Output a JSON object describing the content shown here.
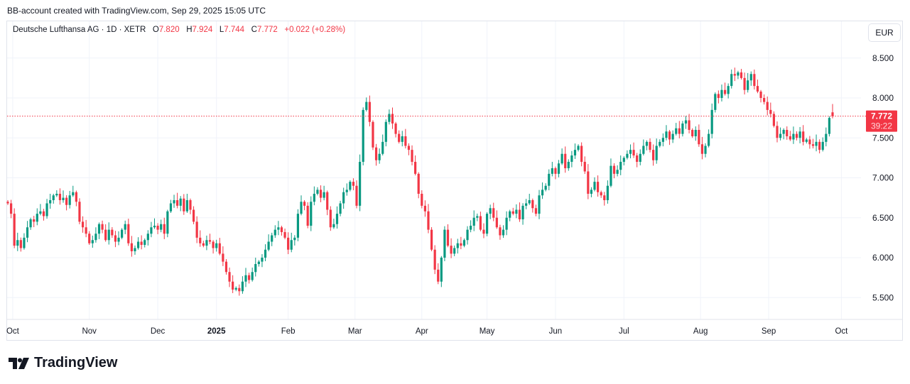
{
  "credit": "BB-account created with TradingView.com, Sep 29, 2025 15:05 UTC",
  "legend": {
    "symbol": "Deutsche Lufthansa AG · 1D · XETR",
    "o_label": "O",
    "o": "7.820",
    "h_label": "H",
    "h": "7.924",
    "l_label": "L",
    "l": "7.744",
    "c_label": "C",
    "c": "7.772",
    "change": "+0.022 (+0.28%)"
  },
  "currency": "EUR",
  "last_price": {
    "price": "7.772",
    "countdown": "39:22"
  },
  "brand": "TradingView",
  "colors": {
    "up": "#089981",
    "down": "#f23645",
    "grid": "#f0f3fa",
    "text": "#131722"
  },
  "chart_data": {
    "type": "candlestick",
    "title": "Deutsche Lufthansa AG · 1D · XETR",
    "ylim": [
      5.2,
      8.8
    ],
    "yticks": [
      "5.500",
      "6.000",
      "6.500",
      "7.000",
      "7.500",
      "8.000",
      "8.500"
    ],
    "xticks": [
      {
        "label": "Oct",
        "index": 1.5
      },
      {
        "label": "Nov",
        "index": 25
      },
      {
        "label": "Dec",
        "index": 46
      },
      {
        "label": "2025",
        "index": 64,
        "bold": true
      },
      {
        "label": "Feb",
        "index": 86
      },
      {
        "label": "Mar",
        "index": 106.5
      },
      {
        "label": "Apr",
        "index": 127
      },
      {
        "label": "May",
        "index": 147
      },
      {
        "label": "Jun",
        "index": 168
      },
      {
        "label": "Jul",
        "index": 189
      },
      {
        "label": "Aug",
        "index": 212.5
      },
      {
        "label": "Sep",
        "index": 233.4
      },
      {
        "label": "Oct",
        "index": 255.7
      }
    ],
    "first_open": 6.7,
    "last_open": 7.82,
    "last_high": 7.924,
    "last_low": 7.744,
    "close": [
      6.68,
      6.55,
      6.15,
      6.22,
      6.12,
      6.25,
      6.38,
      6.48,
      6.45,
      6.55,
      6.58,
      6.52,
      6.68,
      6.72,
      6.78,
      6.8,
      6.72,
      6.75,
      6.66,
      6.78,
      6.82,
      6.7,
      6.45,
      6.38,
      6.3,
      6.18,
      6.22,
      6.3,
      6.42,
      6.35,
      6.22,
      6.35,
      6.28,
      6.2,
      6.25,
      6.35,
      6.42,
      6.18,
      6.08,
      6.12,
      6.2,
      6.16,
      6.22,
      6.3,
      6.38,
      6.4,
      6.35,
      6.42,
      6.3,
      6.58,
      6.68,
      6.72,
      6.65,
      6.74,
      6.58,
      6.72,
      6.6,
      6.45,
      6.25,
      6.18,
      6.15,
      6.22,
      6.2,
      6.12,
      6.18,
      6.05,
      5.95,
      5.82,
      5.7,
      5.6,
      5.62,
      5.58,
      5.7,
      5.78,
      5.72,
      5.82,
      5.92,
      5.95,
      6.0,
      6.1,
      6.2,
      6.28,
      6.35,
      6.38,
      6.32,
      6.25,
      6.1,
      6.22,
      6.25,
      6.55,
      6.7,
      6.65,
      6.4,
      6.7,
      6.8,
      6.85,
      6.75,
      6.82,
      6.6,
      6.38,
      6.42,
      6.55,
      6.68,
      6.82,
      6.85,
      6.95,
      6.9,
      6.65,
      7.2,
      7.85,
      7.95,
      7.7,
      7.38,
      7.22,
      7.3,
      7.45,
      7.7,
      7.8,
      7.68,
      7.55,
      7.45,
      7.52,
      7.4,
      7.35,
      7.2,
      7.05,
      6.8,
      6.65,
      6.58,
      6.35,
      6.1,
      5.85,
      5.7,
      6.0,
      6.35,
      6.15,
      6.05,
      6.12,
      6.18,
      6.15,
      6.22,
      6.35,
      6.4,
      6.5,
      6.52,
      6.35,
      6.3,
      6.55,
      6.62,
      6.5,
      6.38,
      6.28,
      6.35,
      6.5,
      6.58,
      6.55,
      6.6,
      6.48,
      6.65,
      6.68,
      6.72,
      6.62,
      6.55,
      6.78,
      6.85,
      6.9,
      7.05,
      7.12,
      7.05,
      7.18,
      7.3,
      7.12,
      7.2,
      7.28,
      7.35,
      7.4,
      7.2,
      7.08,
      6.8,
      6.85,
      6.95,
      6.82,
      6.78,
      6.72,
      6.9,
      7.15,
      7.05,
      7.1,
      7.2,
      7.25,
      7.3,
      7.35,
      7.28,
      7.2,
      7.3,
      7.4,
      7.45,
      7.35,
      7.22,
      7.4,
      7.45,
      7.5,
      7.58,
      7.48,
      7.55,
      7.62,
      7.55,
      7.68,
      7.72,
      7.6,
      7.52,
      7.6,
      7.42,
      7.3,
      7.4,
      7.55,
      7.85,
      8.05,
      8.0,
      8.1,
      8.05,
      8.15,
      8.3,
      8.28,
      8.32,
      8.25,
      8.1,
      8.22,
      8.3,
      8.15,
      8.08,
      8.0,
      7.95,
      7.85,
      7.8,
      7.65,
      7.5,
      7.55,
      7.6,
      7.52,
      7.48,
      7.55,
      7.5,
      7.58,
      7.45,
      7.48,
      7.42,
      7.4,
      7.45,
      7.35,
      7.45,
      7.55,
      7.75,
      7.772
    ]
  }
}
